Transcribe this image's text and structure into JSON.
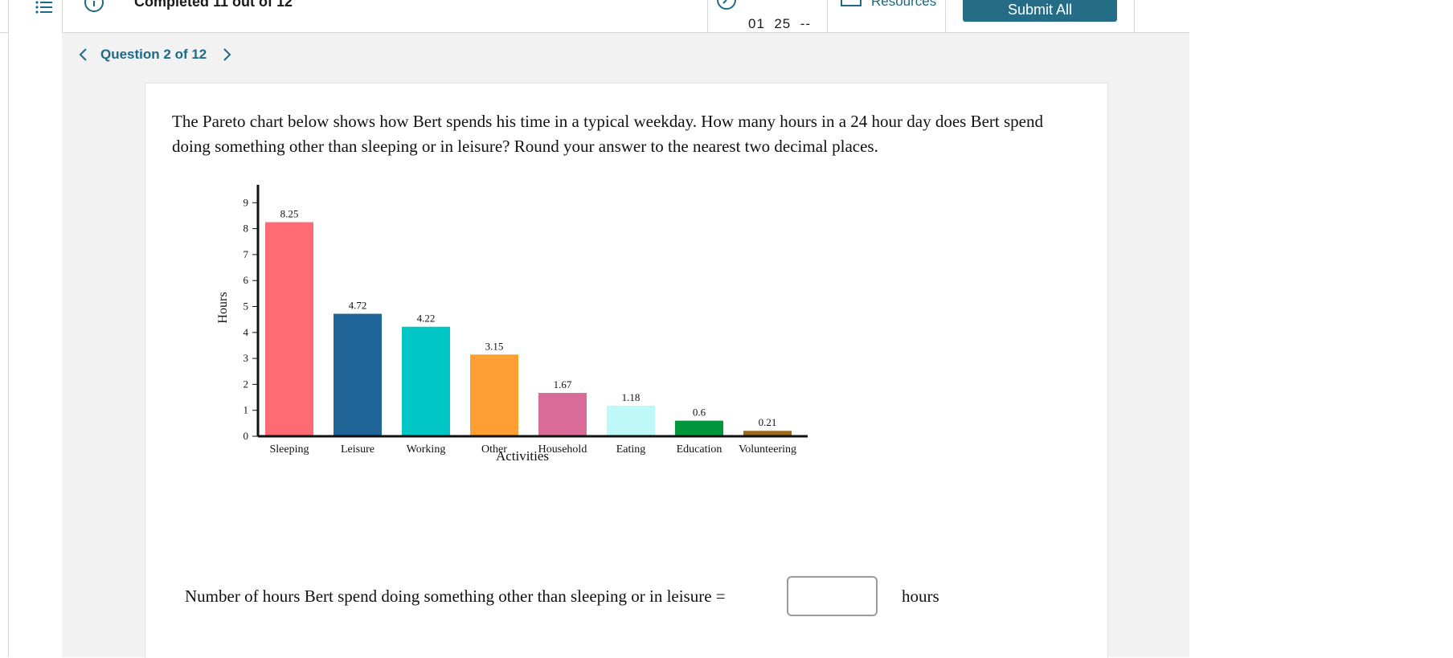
{
  "header": {
    "completed_text": "Completed 11 out of 12",
    "timer_text": "01  25  --",
    "resources_label": "Resources",
    "submit_label": "Submit All"
  },
  "nav": {
    "question_label": "Question 2 of 12"
  },
  "question": {
    "text": "The Pareto chart below shows how Bert spends his time in a typical weekday. How many hours in a 24 hour day does Bert spend doing something other than sleeping or in leisure? Round your answer to the nearest two decimal places."
  },
  "answer": {
    "label": "Number of hours Bert spend doing something other than sleeping or in leisure =",
    "value": "",
    "unit": "hours"
  },
  "colors": {
    "accent": "#1d6a86",
    "button": "#256d86",
    "background": "#f2f2f2"
  },
  "chart_data": {
    "type": "bar",
    "categories": [
      "Sleeping",
      "Leisure",
      "Working",
      "Other",
      "Household",
      "Eating",
      "Education",
      "Volunteering"
    ],
    "values": [
      8.25,
      4.72,
      4.22,
      3.15,
      1.67,
      1.18,
      0.6,
      0.21
    ],
    "value_labels": [
      "8.25",
      "4.72",
      "4.22",
      "3.15",
      "1.67",
      "1.18",
      "0.6",
      "0.21"
    ],
    "colors": [
      "#ff6b72",
      "#1f6597",
      "#00c6c6",
      "#ff9f33",
      "#d86b98",
      "#bff8f8",
      "#00963c",
      "#9d6b1f"
    ],
    "xlabel": "Activities",
    "ylabel": "Hours",
    "yticks": [
      "0",
      "1",
      "2",
      "3",
      "4",
      "5",
      "6",
      "7",
      "8",
      "9"
    ],
    "ylim": [
      0,
      9
    ],
    "grid": false
  }
}
